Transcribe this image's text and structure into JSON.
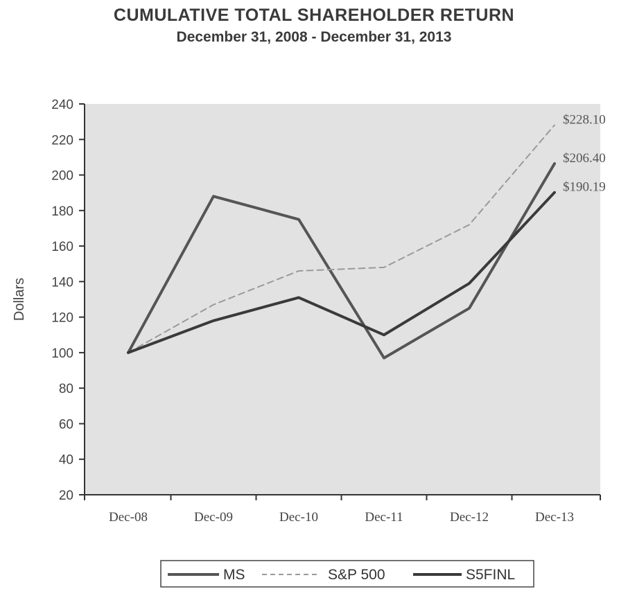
{
  "chart_data": {
    "type": "line",
    "title": "CUMULATIVE TOTAL SHAREHOLDER RETURN",
    "subtitle": "December 31, 2008 - December 31, 2013",
    "ylabel": "Dollars",
    "xlabel": "",
    "categories": [
      "Dec-08",
      "Dec-09",
      "Dec-10",
      "Dec-11",
      "Dec-12",
      "Dec-13"
    ],
    "ylim": [
      20,
      240
    ],
    "yticks": [
      20,
      40,
      60,
      80,
      100,
      120,
      140,
      160,
      180,
      200,
      220,
      240
    ],
    "ytick_labels": [
      "20",
      "40",
      "60",
      "80",
      "100",
      "120",
      "140",
      "160",
      "180",
      "200",
      "220",
      "240"
    ],
    "grid": false,
    "legend_position": "bottom",
    "series": [
      {
        "name": "MS",
        "values": [
          100,
          188,
          175,
          97,
          125,
          206.4
        ],
        "color": "#555555",
        "style": "solid",
        "end_label": "$206.40"
      },
      {
        "name": "S&P 500",
        "values": [
          100,
          127,
          146,
          148,
          172,
          228.1
        ],
        "color": "#9a9a9a",
        "style": "dashed",
        "end_label": "$228.10"
      },
      {
        "name": "S5FINL",
        "values": [
          100,
          118,
          131,
          110,
          139,
          190.19
        ],
        "color": "#3a3a3a",
        "style": "solid",
        "end_label": "$190.19"
      }
    ],
    "plot_background": "#e2e2e2"
  }
}
